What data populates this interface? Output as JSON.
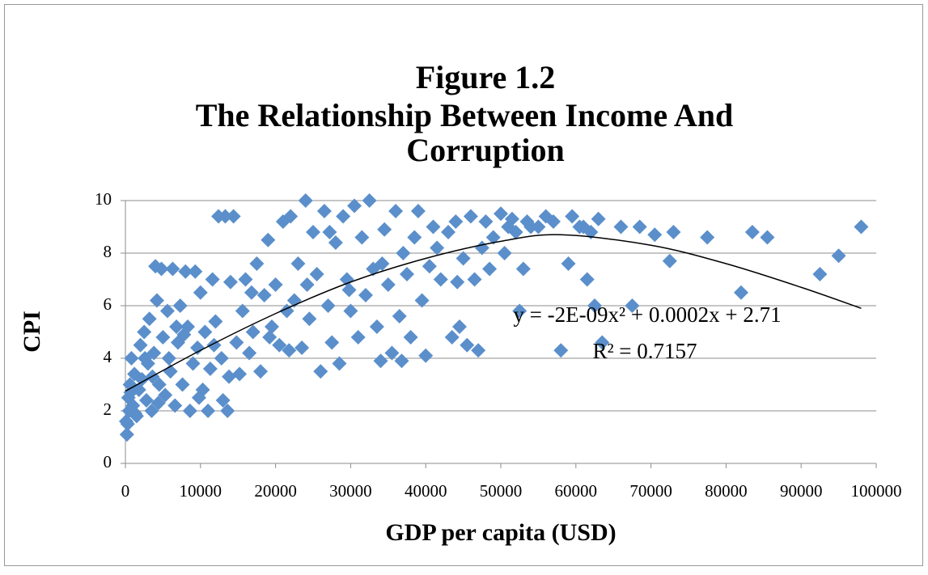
{
  "chart_data": {
    "type": "scatter",
    "title": [
      "Figure 1.2",
      "The Relationship Between Income And",
      "Corruption"
    ],
    "x_label": "GDP per capita (USD)",
    "y_label": "CPI",
    "annotations": [
      "y = -2E-09x² + 0.0002x + 2.71",
      "R² = 0.7157"
    ],
    "xlim": [
      0,
      100000
    ],
    "ylim": [
      0,
      10
    ],
    "xticks": [
      0,
      10000,
      20000,
      30000,
      40000,
      50000,
      60000,
      70000,
      80000,
      90000,
      100000
    ],
    "yticks": [
      0,
      2,
      4,
      6,
      8,
      10
    ],
    "grid": true,
    "series": [
      {
        "color": "#5b8fcb",
        "x": [
          200,
          300,
          500,
          400,
          600,
          800,
          1000,
          1200,
          1500,
          1800,
          2000,
          2200,
          2500,
          2800,
          3000,
          3200,
          3500,
          3800,
          4000,
          4200,
          4500,
          4800,
          5000,
          5300,
          5600,
          6000,
          6300,
          6600,
          7000,
          7300,
          7600,
          8000,
          8300,
          8600,
          9000,
          9300,
          9600,
          10000,
          10300,
          10600,
          11000,
          11300,
          11600,
          12000,
          12400,
          12800,
          13000,
          13300,
          13600,
          14000,
          14400,
          14800,
          15200,
          15600,
          16000,
          16500,
          17000,
          17500,
          18000,
          18500,
          19000,
          19500,
          20000,
          20500,
          21000,
          21500,
          22000,
          22500,
          23000,
          23500,
          24000,
          24500,
          25000,
          25500,
          26000,
          26500,
          27000,
          27500,
          28000,
          28500,
          29000,
          29500,
          30000,
          30500,
          31000,
          31500,
          32000,
          32500,
          33000,
          33500,
          34000,
          34500,
          35000,
          35500,
          36000,
          36500,
          37000,
          37500,
          38000,
          38500,
          39000,
          39500,
          40000,
          40500,
          41000,
          41500,
          42000,
          43000,
          43500,
          44000,
          44500,
          45000,
          45500,
          46000,
          46500,
          47000,
          47500,
          48000,
          48500,
          49000,
          50000,
          50500,
          51000,
          52000,
          52500,
          53000,
          53500,
          55000,
          56000,
          57000,
          58000,
          59000,
          59500,
          61000,
          61500,
          62000,
          62500,
          63000,
          63500,
          66000,
          67500,
          68500,
          70500,
          72500,
          73000,
          77500,
          82000,
          83500,
          85500,
          92500,
          95000,
          98000,
          100,
          700,
          1300,
          2600,
          3600,
          4400,
          5800,
          6800,
          7800,
          9800,
          11800,
          13800,
          16800,
          19200,
          21800,
          24200,
          27200,
          29800,
          34200,
          36800,
          44200,
          51500,
          54000,
          60500
        ],
        "values": [
          1.1,
          1.5,
          2.0,
          2.5,
          3.0,
          4.0,
          2.2,
          3.4,
          1.8,
          2.8,
          4.5,
          3.2,
          5.0,
          2.4,
          3.8,
          5.5,
          2.0,
          4.2,
          7.5,
          6.2,
          3.0,
          7.4,
          4.8,
          2.6,
          5.8,
          3.5,
          7.4,
          2.2,
          4.6,
          6.0,
          3.0,
          7.3,
          5.2,
          2.0,
          3.8,
          7.3,
          4.4,
          6.5,
          2.8,
          5.0,
          2.0,
          3.6,
          7.0,
          5.4,
          9.4,
          4.0,
          2.4,
          9.4,
          2.0,
          6.9,
          9.4,
          4.6,
          3.4,
          5.8,
          7.0,
          4.2,
          5.0,
          7.6,
          3.5,
          6.4,
          8.5,
          5.2,
          6.8,
          4.5,
          9.2,
          5.8,
          9.4,
          6.2,
          7.6,
          4.4,
          10.0,
          5.5,
          8.8,
          7.2,
          3.5,
          9.6,
          6.0,
          4.6,
          8.4,
          3.8,
          9.4,
          7.0,
          5.8,
          9.8,
          4.8,
          8.6,
          6.4,
          10.0,
          7.4,
          5.2,
          3.9,
          8.9,
          6.8,
          4.2,
          9.6,
          5.6,
          8.0,
          7.2,
          4.8,
          8.6,
          9.6,
          6.2,
          4.1,
          7.5,
          9.0,
          8.2,
          7.0,
          8.8,
          4.8,
          9.2,
          5.2,
          7.8,
          4.5,
          9.4,
          7.0,
          4.3,
          8.2,
          9.2,
          7.4,
          8.6,
          9.5,
          8.0,
          9.0,
          8.8,
          5.8,
          7.4,
          9.2,
          9.0,
          9.4,
          9.2,
          4.3,
          7.6,
          9.4,
          9.0,
          7.0,
          8.8,
          6.0,
          9.3,
          4.6,
          9.0,
          6.0,
          9.0,
          8.7,
          7.7,
          8.8,
          8.6,
          6.5,
          8.8,
          8.6,
          7.2,
          7.9,
          9.0,
          1.6,
          2.7,
          1.9,
          4.0,
          3.3,
          2.3,
          4.0,
          5.2,
          4.9,
          2.5,
          4.5,
          3.3,
          6.5,
          4.8,
          4.3,
          6.8,
          8.8,
          6.6,
          7.6,
          3.9,
          6.9,
          9.3,
          9.0,
          9.0
        ]
      }
    ],
    "trend_line": {
      "color": "#000000",
      "x": [
        0,
        10000,
        20000,
        30000,
        40000,
        50000,
        58000,
        70000,
        80000,
        90000,
        98000
      ],
      "values": [
        2.75,
        4.3,
        5.7,
        6.9,
        7.8,
        8.45,
        8.7,
        8.3,
        7.6,
        6.7,
        5.9
      ]
    }
  }
}
